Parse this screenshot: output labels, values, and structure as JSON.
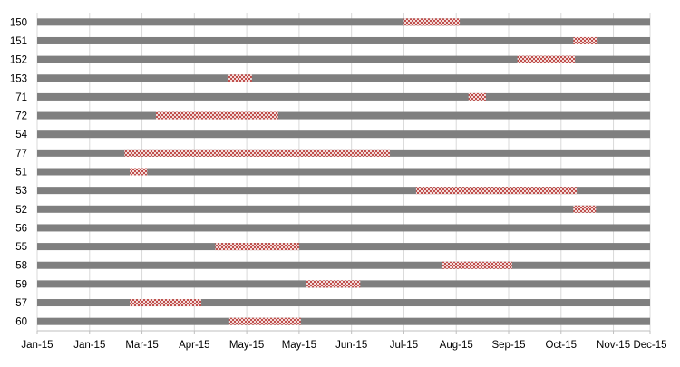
{
  "chart_data": {
    "type": "bar",
    "orientation": "horizontal-gantt",
    "title": "",
    "xlabel": "",
    "ylabel": "",
    "grid": true,
    "legend": "none",
    "xlim": [
      "2015-01-01",
      "2015-12-18"
    ],
    "x_tick_labels": [
      "Jan-15",
      "Jan-15",
      "Mar-15",
      "Apr-15",
      "May-15",
      "May-15",
      "Jun-15",
      "Jul-15",
      "Aug-15",
      "Sep-15",
      "Oct-15",
      "Nov-15",
      "Dec-15"
    ],
    "x_tick_dates": [
      "2015-01-01",
      "2015-01-31",
      "2015-03-02",
      "2015-04-01",
      "2015-05-01",
      "2015-05-31",
      "2015-06-30",
      "2015-07-30",
      "2015-08-29",
      "2015-09-28",
      "2015-10-28",
      "2015-11-27",
      "2015-12-27"
    ],
    "categories": [
      "150",
      "151",
      "152",
      "153",
      "71",
      "72",
      "54",
      "77",
      "51",
      "53",
      "52",
      "56",
      "55",
      "58",
      "59",
      "57",
      "60"
    ],
    "series": [
      {
        "color": "#7f7f7f",
        "pattern": "solid",
        "start": [
          "2015-01-01",
          "2015-01-01",
          "2015-01-01",
          "2015-01-01",
          "2015-01-01",
          "2015-01-01",
          "2015-01-01",
          "2015-01-01",
          "2015-01-01",
          "2015-01-01",
          "2015-01-01",
          "2015-01-01",
          "2015-01-01",
          "2015-01-01",
          "2015-01-01",
          "2015-01-01",
          "2015-01-01"
        ],
        "end": [
          "2015-12-22",
          "2015-12-22",
          "2015-12-22",
          "2015-12-22",
          "2015-12-22",
          "2015-12-22",
          "2015-12-22",
          "2015-12-22",
          "2015-12-22",
          "2015-12-22",
          "2015-12-22",
          "2015-12-22",
          "2015-12-22",
          "2015-12-22",
          "2015-12-22",
          "2015-12-22",
          "2015-12-22"
        ]
      },
      {
        "color": "#c0504d",
        "pattern": "checkered",
        "start": [
          "2015-07-30",
          "2015-11-04",
          "2015-10-03",
          "2015-04-20",
          "2015-09-05",
          "2015-03-10",
          null,
          "2015-02-20",
          "2015-02-23",
          "2015-08-06",
          "2015-11-04",
          null,
          "2015-04-13",
          "2015-08-21",
          "2015-06-04",
          "2015-02-23",
          "2015-04-21"
        ],
        "end": [
          "2015-08-31",
          "2015-11-18",
          "2015-11-05",
          "2015-05-04",
          "2015-09-15",
          "2015-05-19",
          null,
          "2015-07-22",
          "2015-03-05",
          "2015-11-06",
          "2015-11-17",
          null,
          "2015-05-31",
          "2015-09-30",
          "2015-07-05",
          "2015-04-05",
          "2015-06-01"
        ]
      }
    ]
  }
}
